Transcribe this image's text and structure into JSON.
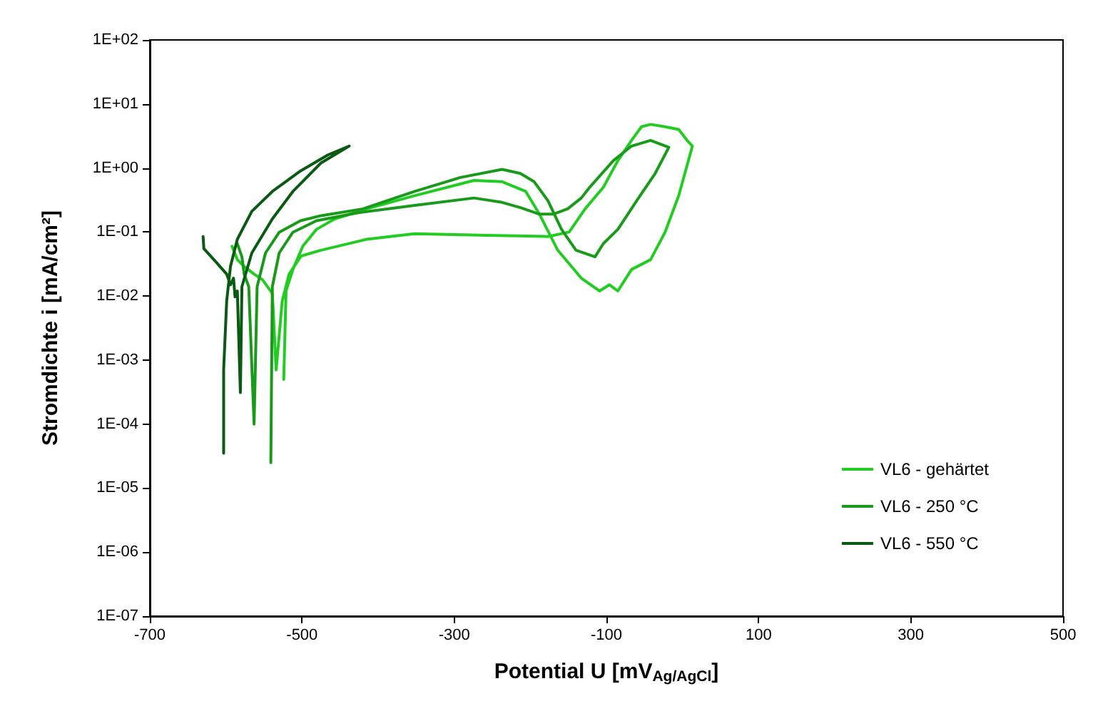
{
  "chart_data": {
    "type": "line",
    "xlabel": "Potential U [mV$_{Ag/AgCl}$]",
    "ylabel": "Stromdichte i [mA/cm²]",
    "xlim": [
      -700,
      500
    ],
    "xticks": [
      -700,
      -500,
      -300,
      -100,
      100,
      300,
      500
    ],
    "ylim": [
      1e-07,
      100
    ],
    "log": "y",
    "yticks": [
      {
        "value": 1e-07,
        "label": "1E-07"
      },
      {
        "value": 1e-06,
        "label": "1E-06"
      },
      {
        "value": 1e-05,
        "label": "1E-05"
      },
      {
        "value": 0.0001,
        "label": "1E-04"
      },
      {
        "value": 0.001,
        "label": "1E-03"
      },
      {
        "value": 0.01,
        "label": "1E-02"
      },
      {
        "value": 0.1,
        "label": "1E-01"
      },
      {
        "value": 1,
        "label": "1E+00"
      },
      {
        "value": 10,
        "label": "1E+01"
      },
      {
        "value": 100,
        "label": "1E+02"
      }
    ],
    "grid": false,
    "legend": "bottom right",
    "line_style": "solid",
    "series": [
      {
        "name": "VL6 - gehärtet",
        "color": "#22cc22",
        "x": [
          -592,
          -585,
          -576,
          -563,
          -552,
          -539,
          -534,
          -526,
          -517,
          -502,
          -499,
          -475,
          -415,
          -352,
          -256,
          -177,
          -149,
          -128,
          -104,
          -85,
          -67,
          -54,
          -42,
          -23,
          -5,
          6,
          13,
          -5,
          -23,
          -42,
          -67,
          -85,
          -96,
          -109,
          -133,
          -164,
          -188,
          -206,
          -237,
          -274,
          -352,
          -415,
          -457,
          -481,
          -499,
          -512,
          -521,
          -524
        ],
        "values": [
          0.06,
          0.037,
          0.029,
          0.022,
          0.018,
          0.011,
          0.0007,
          0.0084,
          0.022,
          0.041,
          0.043,
          0.052,
          0.077,
          0.094,
          0.089,
          0.085,
          0.1,
          0.23,
          0.5,
          1.3,
          2.7,
          4.4,
          4.8,
          4.4,
          4.0,
          2.7,
          2.2,
          0.37,
          0.099,
          0.037,
          0.026,
          0.012,
          0.015,
          0.012,
          0.019,
          0.052,
          0.19,
          0.43,
          0.61,
          0.64,
          0.37,
          0.23,
          0.16,
          0.11,
          0.06,
          0.026,
          0.012,
          0.0005
        ]
      },
      {
        "name": "VL6 - 250 °C",
        "color": "#1a9a1a",
        "x": [
          -585,
          -579,
          -576,
          -570,
          -563,
          -559,
          -548,
          -530,
          -502,
          -475,
          -420,
          -352,
          -292,
          -237,
          -213,
          -195,
          -177,
          -159,
          -140,
          -115,
          -104,
          -85,
          -60,
          -36,
          -18,
          -42,
          -67,
          -91,
          -122,
          -133,
          -151,
          -170,
          -188,
          -213,
          -237,
          -274,
          -352,
          -426,
          -481,
          -512,
          -530,
          -539,
          -541
        ],
        "values": [
          0.066,
          0.041,
          0.022,
          0.014,
          0.0001,
          0.014,
          0.047,
          0.099,
          0.15,
          0.18,
          0.23,
          0.43,
          0.71,
          0.95,
          0.82,
          0.61,
          0.31,
          0.11,
          0.052,
          0.041,
          0.066,
          0.11,
          0.31,
          0.82,
          2.1,
          2.7,
          2.2,
          1.3,
          0.5,
          0.34,
          0.23,
          0.19,
          0.19,
          0.24,
          0.29,
          0.34,
          0.26,
          0.2,
          0.15,
          0.099,
          0.047,
          0.014,
          2.5e-05
        ]
      },
      {
        "name": "VL6 - 550 °C",
        "color": "#0b5a14",
        "x": [
          -630,
          -629,
          -612,
          -599,
          -594,
          -590,
          -588,
          -585,
          -581,
          -579,
          -566,
          -539,
          -512,
          -475,
          -438,
          -466,
          -502,
          -539,
          -566,
          -585,
          -594,
          -599,
          -603,
          -603
        ],
        "values": [
          0.085,
          0.055,
          0.033,
          0.022,
          0.015,
          0.019,
          0.0097,
          0.012,
          0.00031,
          0.014,
          0.047,
          0.16,
          0.43,
          1.2,
          2.2,
          1.6,
          0.9,
          0.43,
          0.21,
          0.077,
          0.029,
          0.0084,
          0.0007,
          3.5e-05
        ]
      }
    ]
  }
}
